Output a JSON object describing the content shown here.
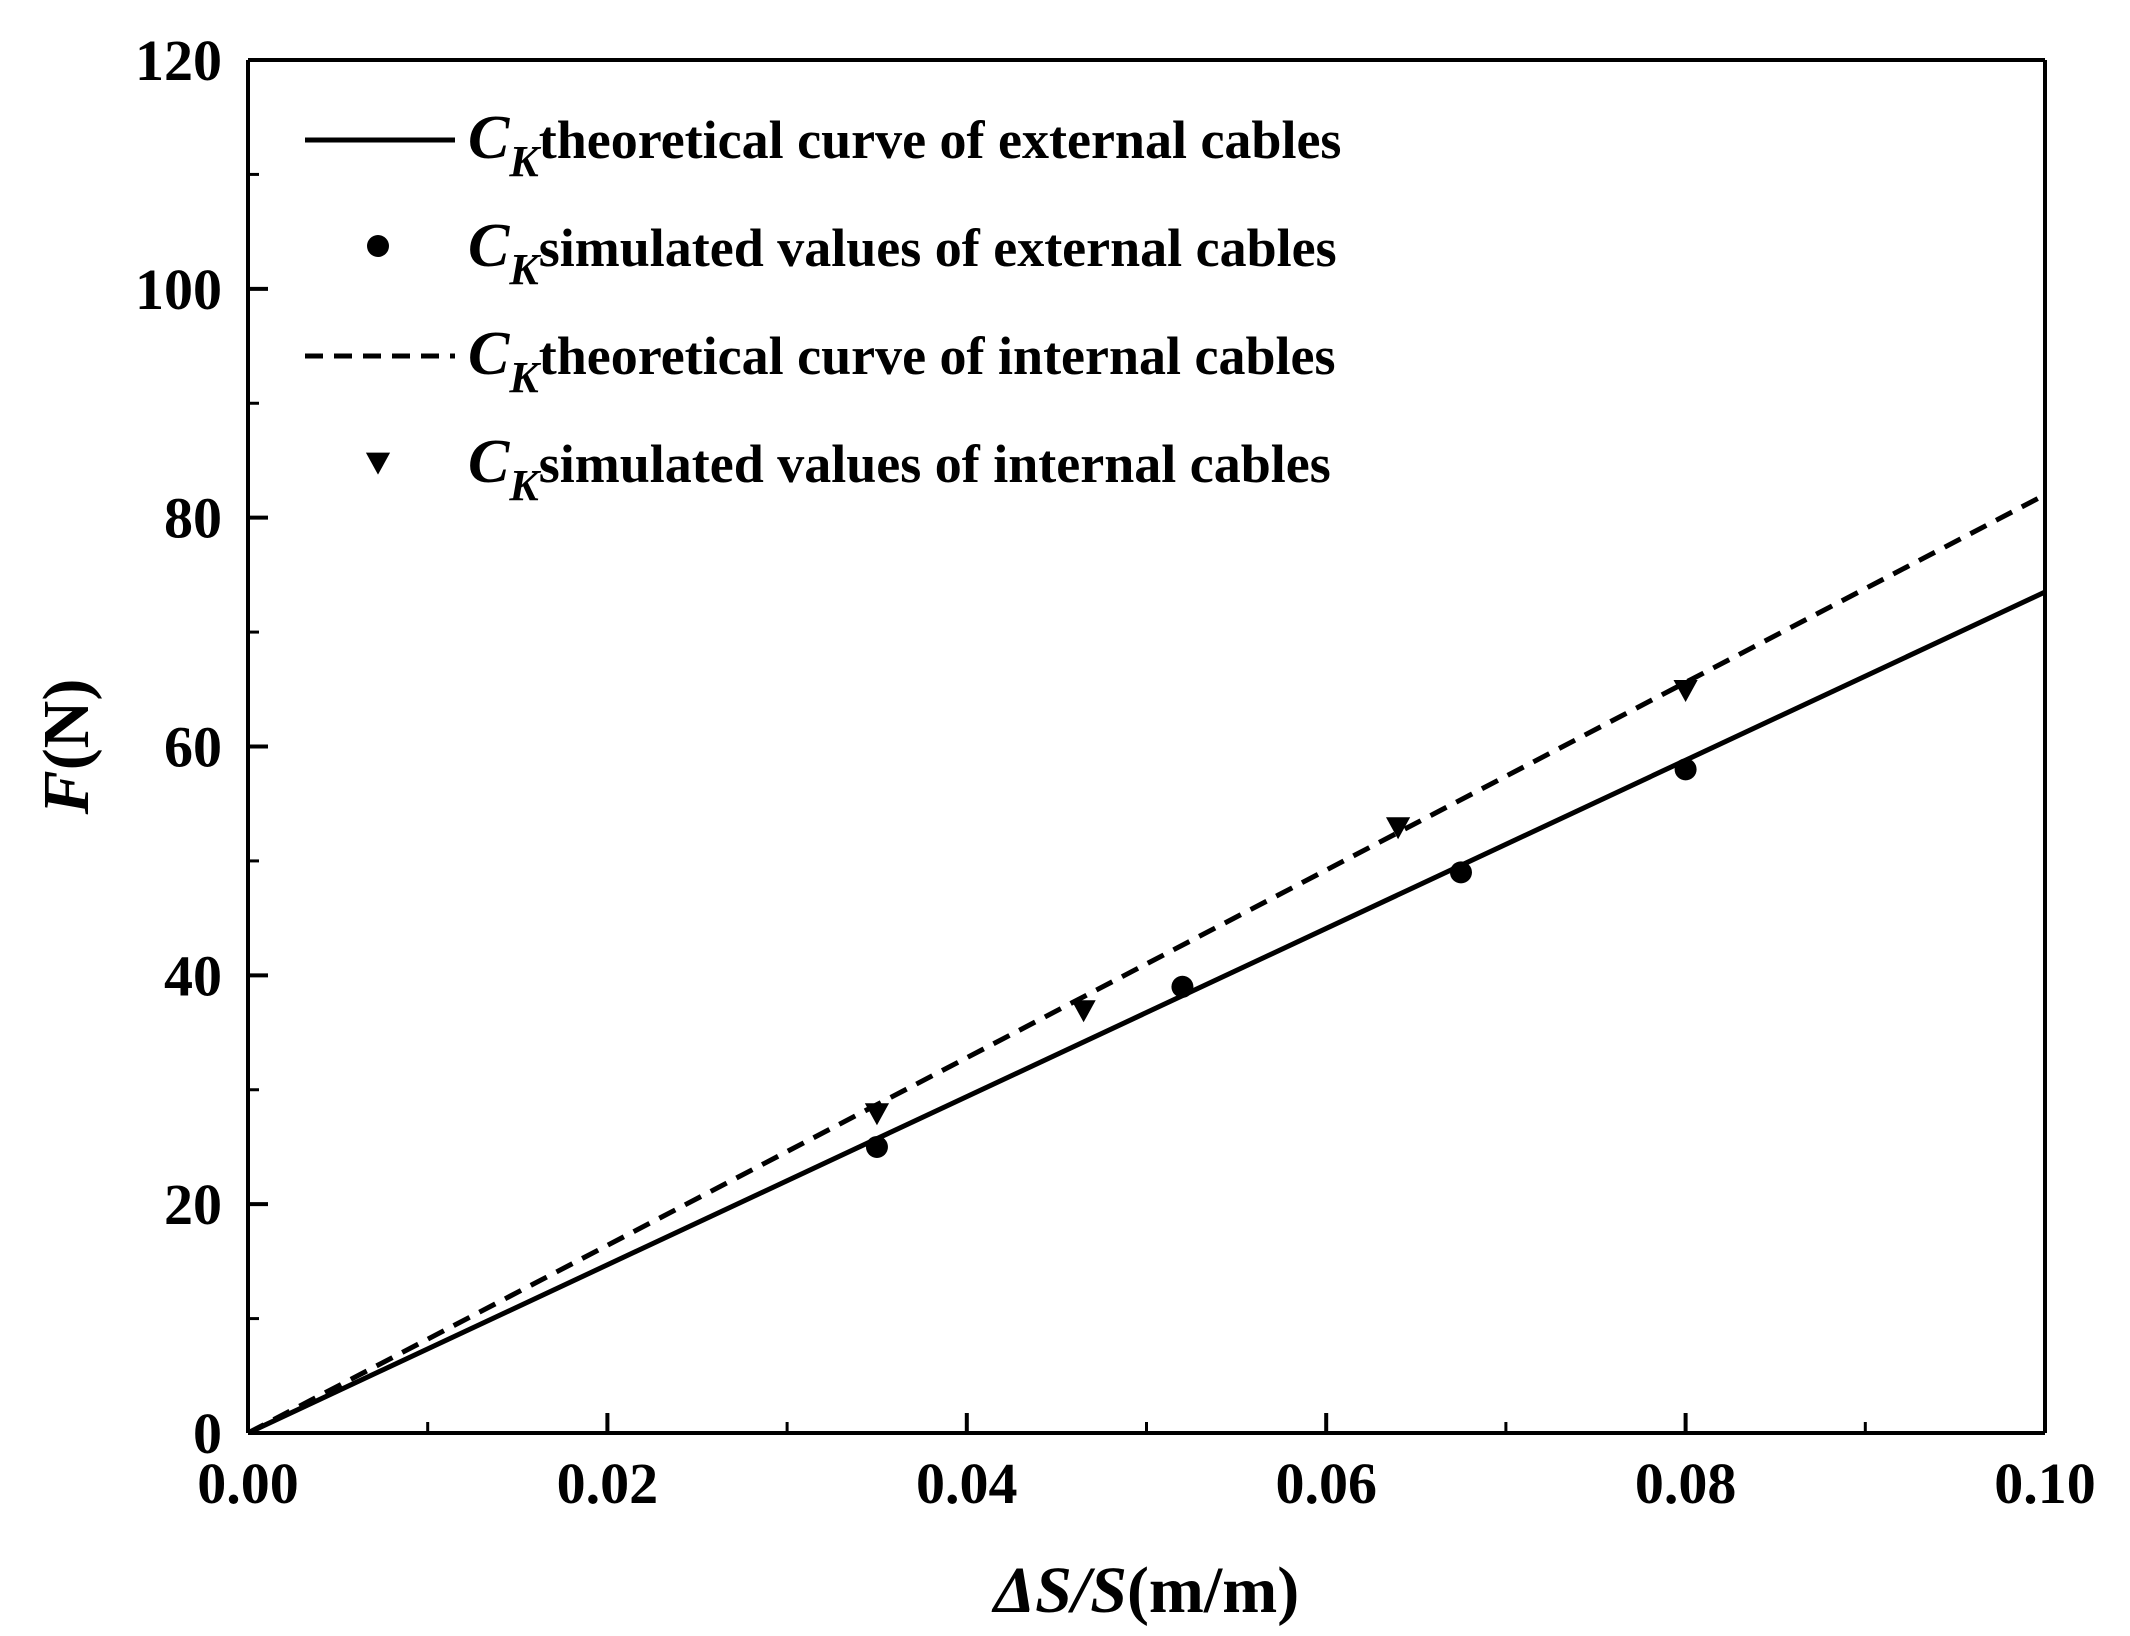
{
  "chart_data": {
    "type": "line",
    "title": "",
    "xlabel": {
      "italic_part": "ΔS/S",
      "unit_part": "(m/m)"
    },
    "ylabel": {
      "italic_part": "F",
      "unit_part": "(N)"
    },
    "xlim": [
      0.0,
      0.1
    ],
    "ylim": [
      0,
      120
    ],
    "x_ticks": [
      "0.00",
      "0.02",
      "0.04",
      "0.06",
      "0.08",
      "0.10"
    ],
    "x_tick_values": [
      0.0,
      0.02,
      0.04,
      0.06,
      0.08,
      0.1
    ],
    "x_minor_step": 0.01,
    "y_ticks": [
      "0",
      "20",
      "40",
      "60",
      "80",
      "100",
      "120"
    ],
    "y_tick_values": [
      0,
      20,
      40,
      60,
      80,
      100,
      120
    ],
    "y_minor_step": 10,
    "grid": false,
    "legend_position": "top-left",
    "series": [
      {
        "name": "theoretical curve of external cables",
        "symbol": "C",
        "subscript": "K",
        "kind": "line",
        "style": "solid",
        "x": [
          0.0,
          0.1
        ],
        "y": [
          0,
          73.5
        ]
      },
      {
        "name": "simulated values of external cables",
        "symbol": "C",
        "subscript": "K",
        "kind": "scatter",
        "marker": "circle",
        "x": [
          0.035,
          0.052,
          0.0675,
          0.08
        ],
        "y": [
          25,
          39,
          49,
          58
        ]
      },
      {
        "name": "theoretical curve of internal cables",
        "symbol": "C",
        "subscript": "K",
        "kind": "line",
        "style": "dashed",
        "x": [
          0.0,
          0.1
        ],
        "y": [
          0,
          82
        ]
      },
      {
        "name": "simulated values of internal cables",
        "symbol": "C",
        "subscript": "K",
        "kind": "scatter",
        "marker": "triangle-down",
        "x": [
          0.035,
          0.0465,
          0.064,
          0.08
        ],
        "y": [
          28,
          37,
          53,
          65
        ]
      }
    ],
    "colors": {
      "line": "#000000",
      "marker": "#000000",
      "axis": "#000000"
    }
  }
}
